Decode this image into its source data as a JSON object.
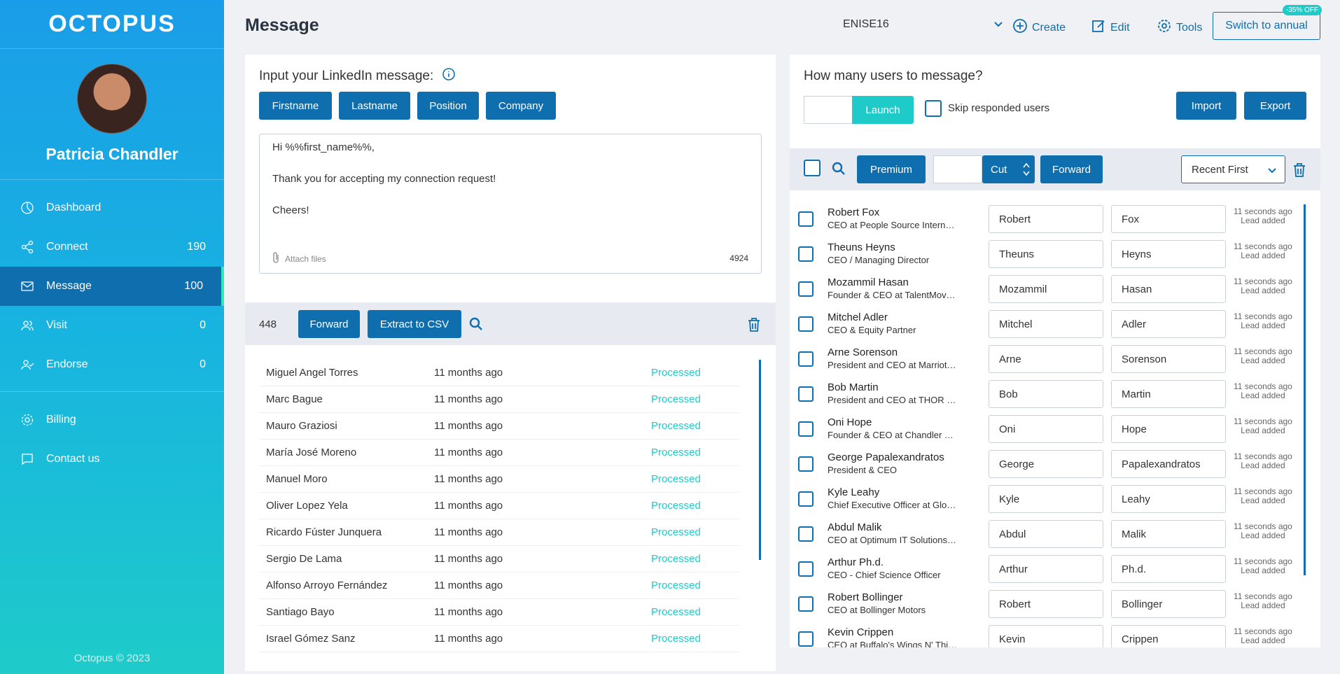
{
  "sidebar": {
    "logo": "OCTOPUS",
    "user_name": "Patricia Chandler",
    "items": [
      {
        "label": "Dashboard",
        "count": ""
      },
      {
        "label": "Connect",
        "count": "190"
      },
      {
        "label": "Message",
        "count": "100"
      },
      {
        "label": "Visit",
        "count": "0"
      },
      {
        "label": "Endorse",
        "count": "0"
      }
    ],
    "bottom_items": [
      {
        "label": "Billing"
      },
      {
        "label": "Contact us"
      }
    ],
    "footer": "Octopus © 2023"
  },
  "header": {
    "title": "Message",
    "account_select": "ENISE16",
    "create_label": "Create",
    "edit_label": "Edit",
    "tools_label": "Tools",
    "switch_label": "Switch to annual",
    "discount_badge": "-35% OFF"
  },
  "composer": {
    "prompt": "Input your LinkedIn message:",
    "variables": [
      "Firstname",
      "Lastname",
      "Position",
      "Company"
    ],
    "message_lines": [
      "Hi %%first_name%%,",
      "Thank you for accepting my connection request!",
      "Cheers!"
    ],
    "attach_label": "Attach files",
    "char_count": "4924"
  },
  "processed": {
    "count": "448",
    "forward_label": "Forward",
    "extract_label": "Extract to CSV",
    "rows": [
      {
        "name": "Miguel Angel Torres",
        "time": "11 months ago",
        "status": "Processed"
      },
      {
        "name": "Marc Bague",
        "time": "11 months ago",
        "status": "Processed"
      },
      {
        "name": "Mauro Graziosi",
        "time": "11 months ago",
        "status": "Processed"
      },
      {
        "name": "María José Moreno",
        "time": "11 months ago",
        "status": "Processed"
      },
      {
        "name": "Manuel Moro",
        "time": "11 months ago",
        "status": "Processed"
      },
      {
        "name": "Oliver Lopez Yela",
        "time": "11 months ago",
        "status": "Processed"
      },
      {
        "name": "Ricardo Fúster Junquera",
        "time": "11 months ago",
        "status": "Processed"
      },
      {
        "name": "Sergio De Lama",
        "time": "11 months ago",
        "status": "Processed"
      },
      {
        "name": "Alfonso Arroyo Fernández",
        "time": "11 months ago",
        "status": "Processed"
      },
      {
        "name": "Santiago Bayo",
        "time": "11 months ago",
        "status": "Processed"
      },
      {
        "name": "Israel Gómez Sanz",
        "time": "11 months ago",
        "status": "Processed"
      }
    ]
  },
  "users_panel": {
    "question": "How many users to message?",
    "launch_label": "Launch",
    "skip_label": "Skip responded users",
    "import_label": "Import",
    "export_label": "Export",
    "premium_label": "Premium",
    "cut_label": "Cut",
    "forward_label": "Forward",
    "sort_value": "Recent First",
    "users": [
      {
        "name": "Robert Fox",
        "title": "CEO at People Source International",
        "first": "Robert",
        "last": "Fox",
        "time": "11 seconds ago",
        "status": "Lead added"
      },
      {
        "name": "Theuns Heyns",
        "title": "CEO / Managing Director",
        "first": "Theuns",
        "last": "Heyns",
        "time": "11 seconds ago",
        "status": "Lead added"
      },
      {
        "name": "Mozammil Hasan",
        "title": "Founder & CEO at TalentMovers",
        "first": "Mozammil",
        "last": "Hasan",
        "time": "11 seconds ago",
        "status": "Lead added"
      },
      {
        "name": "Mitchel Adler",
        "title": "CEO & Equity Partner",
        "first": "Mitchel",
        "last": "Adler",
        "time": "11 seconds ago",
        "status": "Lead added"
      },
      {
        "name": "Arne Sorenson",
        "title": "President and CEO at Marriott International",
        "first": "Arne",
        "last": "Sorenson",
        "time": "11 seconds ago",
        "status": "Lead added"
      },
      {
        "name": "Bob Martin",
        "title": "President and CEO at THOR Industries",
        "first": "Bob",
        "last": "Martin",
        "time": "11 seconds ago",
        "status": "Lead added"
      },
      {
        "name": "Oni Hope",
        "title": "Founder & CEO at Chandler Tea and Coffee",
        "first": "Oni",
        "last": "Hope",
        "time": "11 seconds ago",
        "status": "Lead added"
      },
      {
        "name": "George Papalexandratos",
        "title": "President & CEO",
        "first": "George",
        "last": "Papalexandratos",
        "time": "11 seconds ago",
        "status": "Lead added"
      },
      {
        "name": "Kyle Leahy",
        "title": "Chief Executive Officer at Glossier, Inc.",
        "first": "Kyle",
        "last": "Leahy",
        "time": "11 seconds ago",
        "status": "Lead added"
      },
      {
        "name": "Abdul Malik",
        "title": "CEO at Optimum IT Solutions Inc.",
        "first": "Abdul",
        "last": "Malik",
        "time": "11 seconds ago",
        "status": "Lead added"
      },
      {
        "name": "Arthur Ph.d.",
        "title": "CEO - Chief Science Officer",
        "first": "Arthur",
        "last": "Ph.d.",
        "time": "11 seconds ago",
        "status": "Lead added"
      },
      {
        "name": "Robert Bollinger",
        "title": "CEO at Bollinger Motors",
        "first": "Robert",
        "last": "Bollinger",
        "time": "11 seconds ago",
        "status": "Lead added"
      },
      {
        "name": "Kevin Crippen",
        "title": "CEO at Buffalo's Wings N' Things",
        "first": "Kevin",
        "last": "Crippen",
        "time": "11 seconds ago",
        "status": "Lead added"
      }
    ]
  },
  "colors": {
    "primary": "#0f6fae",
    "accent": "#1ecbc9",
    "sidebar_top": "#1a9de8"
  }
}
